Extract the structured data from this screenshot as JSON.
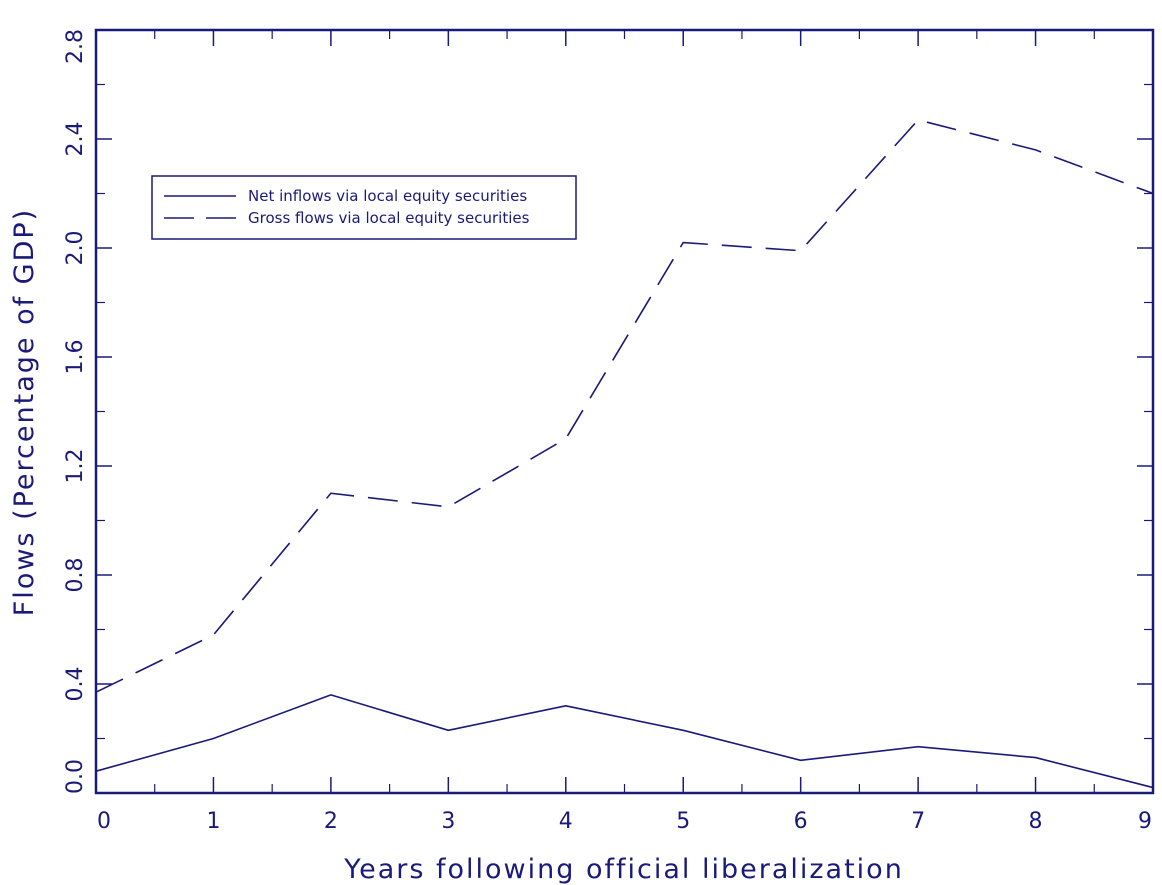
{
  "colors": {
    "ink": "#1a1a7a",
    "background": "#ffffff"
  },
  "chart_data": {
    "type": "line",
    "title": "",
    "xlabel": "Years following official liberalization",
    "ylabel": "Flows (Percentage of GDP)",
    "x": [
      0,
      1,
      2,
      3,
      4,
      5,
      6,
      7,
      8,
      9
    ],
    "xlim": [
      0,
      9
    ],
    "ylim": [
      0.0,
      2.8
    ],
    "x_ticks": [
      "0",
      "1",
      "2",
      "3",
      "4",
      "5",
      "6",
      "7",
      "8",
      "9"
    ],
    "y_ticks": [
      "0.0",
      "0.4",
      "0.8",
      "1.2",
      "1.6",
      "2.0",
      "2.4",
      "2.8"
    ],
    "grid": false,
    "legend_position": "upper-left",
    "series": [
      {
        "name": "Net inflows via local equity securities",
        "style": "solid",
        "values": [
          0.08,
          0.2,
          0.36,
          0.23,
          0.32,
          0.23,
          0.12,
          0.17,
          0.13,
          0.02
        ]
      },
      {
        "name": "Gross flows via local equity securities",
        "style": "dashed",
        "values": [
          0.37,
          0.58,
          1.1,
          1.05,
          1.3,
          2.02,
          1.99,
          2.47,
          2.36,
          2.2
        ]
      }
    ]
  }
}
